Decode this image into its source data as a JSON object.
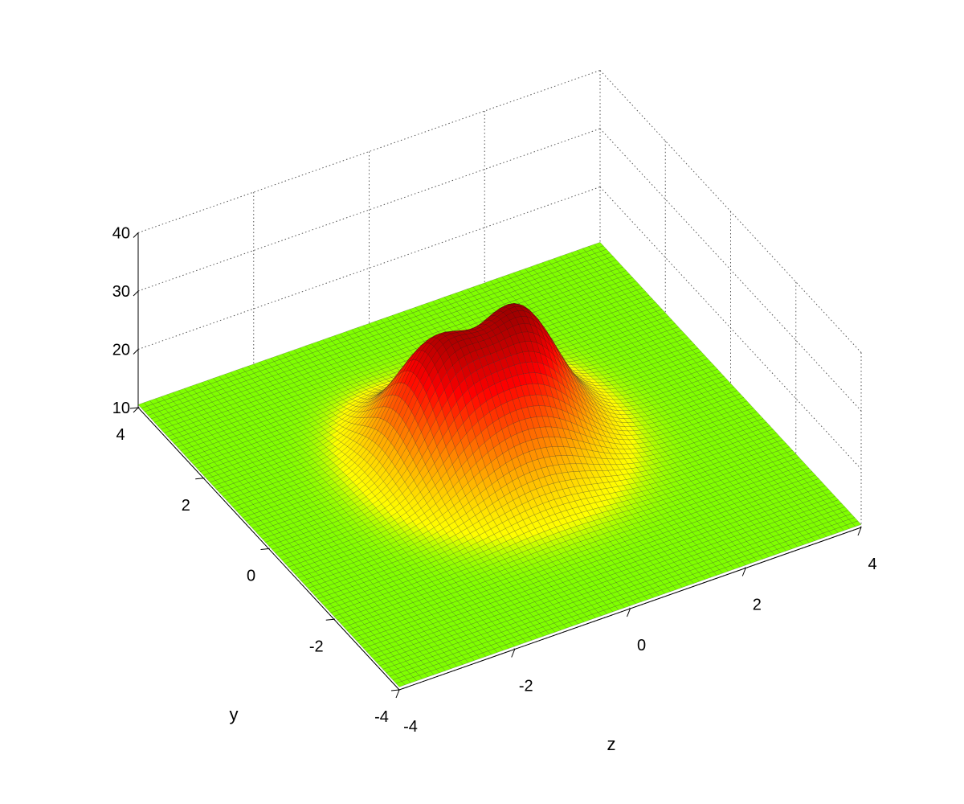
{
  "chart_data": {
    "type": "surface",
    "title": "",
    "xlabel": "z",
    "ylabel": "y",
    "zlabel": "",
    "xlim": [
      -4,
      4
    ],
    "ylim": [
      -4,
      4
    ],
    "zlim": [
      10,
      40
    ],
    "x_ticks": [
      "-4",
      "-2",
      "0",
      "2",
      "4"
    ],
    "y_ticks": [
      "-4",
      "-2",
      "0",
      "2",
      "4"
    ],
    "z_ticks": [
      "10",
      "20",
      "30",
      "40"
    ],
    "grid": true,
    "colormap": "autumn",
    "colors": {
      "low": "#80ff00",
      "mid": "#ffff00",
      "high": "#ff0000",
      "peak": "#400000"
    },
    "surface": {
      "base_level": 10.5,
      "grid_points": 81,
      "peaks": [
        {
          "x": -0.8,
          "y": 0.8,
          "height": 36
        },
        {
          "x": 0.8,
          "y": 0.8,
          "height": 37
        }
      ],
      "ridge_center": {
        "x": 0,
        "y": -0.2,
        "height": 24
      }
    }
  }
}
